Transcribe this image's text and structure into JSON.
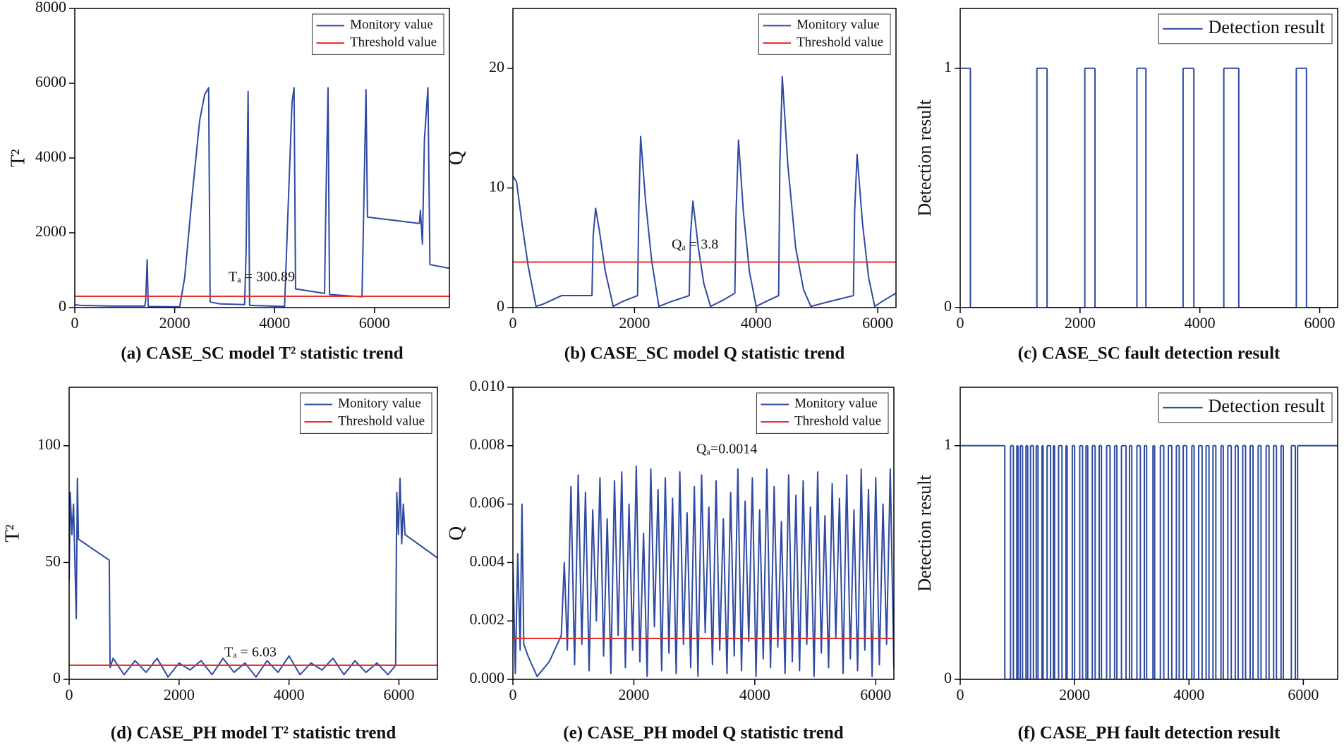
{
  "chart_data": [
    {
      "type": "line",
      "title": "(a) CASE_SC model T² statistic trend",
      "ylabel": "T²",
      "annotation": "Tₐ = 300.89",
      "xlim": [
        0,
        7500
      ],
      "xticks": [
        0,
        2000,
        4000,
        6000
      ],
      "ylim": [
        0,
        8000
      ],
      "yticks": [
        0,
        2000,
        4000,
        6000,
        8000
      ],
      "legend": "upper right",
      "series": [
        {
          "name": "Monitory value",
          "color": "#2f4aa0",
          "x": [
            0,
            100,
            700,
            1400,
            1420,
            1450,
            1470,
            2100,
            2200,
            2350,
            2500,
            2600,
            2680,
            2710,
            2900,
            3400,
            3430,
            3470,
            3500,
            4200,
            4280,
            4350,
            4390,
            4420,
            5000,
            5030,
            5070,
            5100,
            5750,
            5790,
            5830,
            5860,
            6900,
            6920,
            6960,
            7000,
            7070,
            7110,
            7500
          ],
          "values": [
            80,
            60,
            40,
            40,
            200,
            1280,
            30,
            20,
            800,
            3000,
            5000,
            5700,
            5880,
            150,
            100,
            80,
            1500,
            5780,
            60,
            30,
            3000,
            5500,
            5880,
            500,
            380,
            3000,
            5880,
            350,
            290,
            3000,
            5830,
            2420,
            2250,
            2600,
            1700,
            4500,
            5880,
            1150,
            1050
          ]
        },
        {
          "name": "Threshold value",
          "color": "#e8302a",
          "x": [
            0,
            7500
          ],
          "values": [
            300.89,
            300.89
          ]
        }
      ]
    },
    {
      "type": "line",
      "title": "(b) CASE_SC model Q statistic trend",
      "ylabel": "Q",
      "annotation": "Qₐ = 3.8",
      "xlim": [
        0,
        6300
      ],
      "xticks": [
        0,
        2000,
        4000,
        6000
      ],
      "ylim": [
        0,
        25
      ],
      "yticks": [
        0,
        10,
        20
      ],
      "legend": "upper right",
      "series": [
        {
          "name": "Monitory value",
          "color": "#2f4aa0",
          "x": [
            0,
            60,
            150,
            250,
            380,
            500,
            800,
            1300,
            1320,
            1360,
            1420,
            1520,
            1650,
            1800,
            2050,
            2070,
            2100,
            2180,
            2280,
            2400,
            2600,
            2900,
            2920,
            2960,
            3050,
            3140,
            3250,
            3450,
            3650,
            3670,
            3710,
            3790,
            3890,
            4000,
            4200,
            4370,
            4390,
            4430,
            4520,
            4650,
            4780,
            4900,
            5200,
            5600,
            5620,
            5660,
            5750,
            5850,
            5950,
            6100,
            6300
          ],
          "values": [
            11,
            10.5,
            7,
            3.5,
            0.1,
            0.3,
            1,
            1,
            6,
            8.3,
            6.5,
            3,
            0.1,
            0.5,
            1,
            8,
            14.3,
            9,
            4,
            0.1,
            0.5,
            1,
            6,
            8.9,
            5,
            2,
            0.1,
            0.6,
            1.2,
            8,
            14,
            8,
            3,
            0.1,
            0.6,
            1,
            12,
            19.3,
            12,
            5,
            1.5,
            0.1,
            0.5,
            1,
            8,
            12.8,
            7,
            2.5,
            0.1,
            0.6,
            1.2
          ]
        },
        {
          "name": "Threshold value",
          "color": "#e8302a",
          "x": [
            0,
            6300
          ],
          "values": [
            3.8,
            3.8
          ]
        }
      ]
    },
    {
      "type": "line",
      "step": true,
      "title": "(c) CASE_SC fault detection result",
      "ylabel": "Detection result",
      "xlim": [
        0,
        6300
      ],
      "xticks": [
        0,
        2000,
        4000,
        6000
      ],
      "ylim": [
        0,
        1.25
      ],
      "yticks": [
        0,
        1
      ],
      "legend": "upper right",
      "series": [
        {
          "name": "Detection result",
          "color": "#2f4aa0",
          "x": [
            0,
            170,
            1280,
            1450,
            2080,
            2250,
            2950,
            3100,
            3720,
            3900,
            4400,
            4650,
            5610,
            5780,
            6300
          ],
          "values": [
            1,
            0,
            1,
            0,
            1,
            0,
            1,
            0,
            1,
            0,
            1,
            0,
            1,
            0,
            0
          ]
        }
      ]
    },
    {
      "type": "line",
      "title": "(d) CASE_PH model T² statistic trend",
      "ylabel": "T²",
      "annotation": "Tₐ = 6.03",
      "xlim": [
        0,
        6700
      ],
      "xticks": [
        0,
        2000,
        4000,
        6000
      ],
      "ylim": [
        0,
        125
      ],
      "yticks": [
        0,
        50,
        100
      ],
      "legend": "upper right",
      "series": [
        {
          "name": "Monitory value",
          "color": "#2f4aa0",
          "x": [
            0,
            20,
            50,
            80,
            100,
            130,
            150,
            170,
            730,
            745,
            800,
            1000,
            1200,
            1400,
            1600,
            1800,
            2000,
            2200,
            2400,
            2600,
            2800,
            3000,
            3200,
            3400,
            3600,
            3800,
            4000,
            4200,
            4400,
            4600,
            4800,
            5000,
            5200,
            5400,
            5600,
            5800,
            5940,
            5960,
            5990,
            6020,
            6050,
            6080,
            6110,
            6700
          ],
          "values": [
            42,
            80,
            62,
            75,
            55,
            26,
            86,
            60,
            51,
            5,
            9,
            2,
            8,
            3,
            9,
            1,
            7,
            4,
            8,
            2,
            9,
            3,
            7,
            1,
            8,
            3,
            10,
            2,
            7,
            4,
            9,
            2,
            8,
            3,
            7,
            2,
            6,
            80,
            62,
            86,
            58,
            75,
            62,
            52
          ]
        },
        {
          "name": "Threshold value",
          "color": "#e8302a",
          "x": [
            0,
            6700
          ],
          "values": [
            6.03,
            6.03
          ]
        }
      ]
    },
    {
      "type": "line",
      "title": "(e) CASE_PH model Q statistic trend",
      "ylabel": "Q",
      "annotation": "Qₐ=0.0014",
      "xlim": [
        0,
        6300
      ],
      "xticks": [
        0,
        2000,
        4000,
        6000
      ],
      "ylim": [
        0,
        0.01
      ],
      "yticks": [
        {
          "value": 0,
          "label": "0.000"
        },
        {
          "value": 0.002,
          "label": "0.002"
        },
        {
          "value": 0.004,
          "label": "0.004"
        },
        {
          "value": 0.006,
          "label": "0.006"
        },
        {
          "value": 0.008,
          "label": "0.008"
        },
        {
          "value": 0.01,
          "label": "0.010"
        }
      ],
      "legend": "upper right",
      "series": [
        {
          "name": "Monitory value",
          "color": "#2f4aa0",
          "x": [
            0,
            40,
            80,
            120,
            150,
            180,
            250,
            400,
            600,
            800,
            850,
            900,
            960,
            1020,
            1080,
            1140,
            1200,
            1260,
            1320,
            1380,
            1440,
            1500,
            1560,
            1620,
            1680,
            1740,
            1800,
            1860,
            1920,
            1980,
            2040,
            2100,
            2160,
            2220,
            2280,
            2340,
            2400,
            2460,
            2520,
            2580,
            2640,
            2700,
            2760,
            2820,
            2880,
            2940,
            3000,
            3060,
            3120,
            3180,
            3240,
            3300,
            3360,
            3420,
            3480,
            3540,
            3600,
            3660,
            3720,
            3780,
            3840,
            3900,
            3960,
            4020,
            4080,
            4140,
            4200,
            4260,
            4320,
            4380,
            4440,
            4500,
            4560,
            4620,
            4680,
            4740,
            4800,
            4860,
            4920,
            4980,
            5040,
            5100,
            5160,
            5220,
            5280,
            5340,
            5400,
            5460,
            5520,
            5580,
            5640,
            5700,
            5760,
            5820,
            5880,
            5940,
            6000,
            6060,
            6120,
            6180,
            6240,
            6300
          ],
          "values": [
            0.004,
            0.0002,
            0.0043,
            0.001,
            0.006,
            0.0012,
            0.0008,
            0.0001,
            0.0006,
            0.0015,
            0.004,
            0.001,
            0.0066,
            0.0005,
            0.007,
            0.0012,
            0.0064,
            0.0003,
            0.0058,
            0.002,
            0.0069,
            0.0008,
            0.0055,
            0.0002,
            0.0068,
            0.0015,
            0.0071,
            0.0004,
            0.006,
            0.001,
            0.0073,
            0.0006,
            0.005,
            0.0001,
            0.0072,
            0.0018,
            0.0065,
            0.0003,
            0.0069,
            0.0009,
            0.0062,
            0.0002,
            0.0071,
            0.0012,
            0.0057,
            0.0004,
            0.0066,
            0.0001,
            0.007,
            0.0016,
            0.0059,
            0.0005,
            0.0068,
            0.001,
            0.0055,
            0.0002,
            0.0064,
            0.0008,
            0.0072,
            0.0003,
            0.0061,
            0.0013,
            0.0069,
            0.0001,
            0.0058,
            0.0007,
            0.0072,
            0.0004,
            0.0066,
            0.0011,
            0.0054,
            0.0002,
            0.007,
            0.0006,
            0.0063,
            0.0003,
            0.0068,
            0.0012,
            0.0059,
            0.0001,
            0.0071,
            0.0009,
            0.0056,
            0.0004,
            0.0067,
            0.0014,
            0.0062,
            0.0002,
            0.007,
            0.0007,
            0.0058,
            0.0003,
            0.0072,
            0.001,
            0.0065,
            0.0001,
            0.0069,
            0.0005,
            0.006,
            0.0012,
            0.0072,
            0.0004
          ]
        },
        {
          "name": "Threshold value",
          "color": "#e8302a",
          "x": [
            0,
            6300
          ],
          "values": [
            0.0014,
            0.0014
          ]
        }
      ]
    },
    {
      "type": "line",
      "step": true,
      "title": "(f) CASE_PH fault detection result",
      "ylabel": "Detection result",
      "xlim": [
        0,
        6600
      ],
      "xticks": [
        0,
        2000,
        4000,
        6000
      ],
      "ylim": [
        0,
        1.25
      ],
      "yticks": [
        0,
        1
      ],
      "legend": "upper right",
      "series": [
        {
          "name": "Detection result",
          "color": "#2f4aa0",
          "x": [
            0,
            780,
            880,
            930,
            990,
            1010,
            1050,
            1090,
            1150,
            1180,
            1230,
            1280,
            1330,
            1360,
            1430,
            1450,
            1520,
            1580,
            1630,
            1650,
            1720,
            1780,
            1850,
            1870,
            1960,
            2000,
            2090,
            2140,
            2200,
            2230,
            2310,
            2360,
            2430,
            2470,
            2560,
            2620,
            2700,
            2740,
            2820,
            2900,
            2960,
            3000,
            3090,
            3150,
            3220,
            3260,
            3370,
            3400,
            3500,
            3560,
            3640,
            3700,
            3780,
            3830,
            3900,
            3960,
            4050,
            4090,
            4170,
            4230,
            4300,
            4350,
            4420,
            4470,
            4560,
            4600,
            4680,
            4740,
            4810,
            4860,
            4940,
            4990,
            5070,
            5120,
            5210,
            5260,
            5350,
            5400,
            5480,
            5530,
            5610,
            5650,
            5790,
            5860,
            5900,
            6600
          ],
          "values": [
            1,
            0,
            1,
            0,
            1,
            0,
            1,
            0,
            1,
            0,
            1,
            0,
            1,
            0,
            1,
            0,
            1,
            0,
            1,
            0,
            1,
            0,
            1,
            0,
            1,
            0,
            1,
            0,
            1,
            0,
            1,
            0,
            1,
            0,
            1,
            0,
            1,
            0,
            1,
            0,
            1,
            0,
            1,
            0,
            1,
            0,
            1,
            0,
            1,
            0,
            1,
            0,
            1,
            0,
            1,
            0,
            1,
            0,
            1,
            0,
            1,
            0,
            1,
            0,
            1,
            0,
            1,
            0,
            1,
            0,
            1,
            0,
            1,
            0,
            1,
            0,
            1,
            0,
            1,
            0,
            1,
            0,
            1,
            0,
            1,
            1
          ]
        }
      ]
    }
  ]
}
